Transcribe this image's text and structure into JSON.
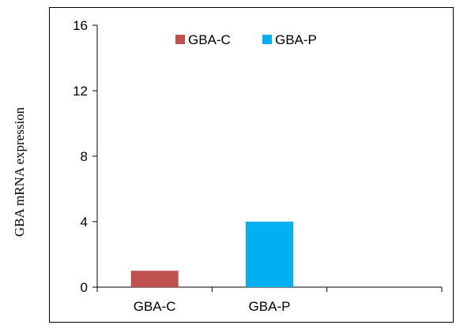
{
  "chart_data": {
    "type": "bar",
    "categories": [
      "GBA-C",
      "GBA-P"
    ],
    "x_slots": 3,
    "series": [
      {
        "name": "GBA-C",
        "values": [
          1,
          null
        ],
        "color": "#c0504d"
      },
      {
        "name": "GBA-P",
        "values": [
          null,
          4
        ],
        "color": "#00b0f0"
      }
    ],
    "title": "",
    "xlabel": "",
    "ylabel": "GBA mRNA expression",
    "ylim": [
      0,
      16
    ],
    "yticks": [
      0,
      4,
      8,
      12,
      16
    ],
    "grid": false,
    "legend": {
      "position": "top-center",
      "entries": [
        {
          "label": "GBA-C",
          "color": "#c0504d"
        },
        {
          "label": "GBA-P",
          "color": "#00b0f0"
        }
      ]
    }
  }
}
